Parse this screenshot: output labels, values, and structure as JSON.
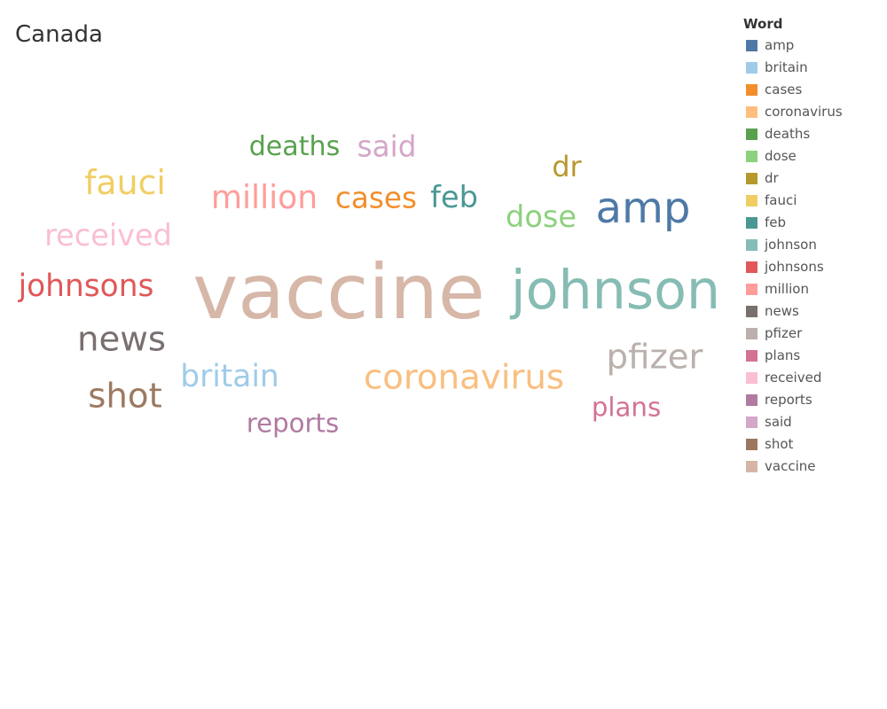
{
  "chart_data": {
    "type": "wordcloud",
    "title": "Canada",
    "legend_title": "Word",
    "legend_position": "right",
    "words": [
      {
        "text": "vaccine",
        "weight": 100,
        "color": "#d6b7a8"
      },
      {
        "text": "johnson",
        "weight": 70,
        "color": "#86bcb3"
      },
      {
        "text": "amp",
        "weight": 56,
        "color": "#4e79a7"
      },
      {
        "text": "coronavirus",
        "weight": 45,
        "color": "#f9bf80"
      },
      {
        "text": "news",
        "weight": 45,
        "color": "#7a6f6f"
      },
      {
        "text": "shot",
        "weight": 45,
        "color": "#9c7a60"
      },
      {
        "text": "pfizer",
        "weight": 45,
        "color": "#bab0ac"
      },
      {
        "text": "fauci",
        "weight": 44,
        "color": "#f1ce63"
      },
      {
        "text": "million",
        "weight": 42,
        "color": "#ff9d9a"
      },
      {
        "text": "johnsons",
        "weight": 40,
        "color": "#e15759"
      },
      {
        "text": "britain",
        "weight": 40,
        "color": "#a0cbe8"
      },
      {
        "text": "received",
        "weight": 39,
        "color": "#fabfd2"
      },
      {
        "text": "dose",
        "weight": 39,
        "color": "#8cd17d"
      },
      {
        "text": "feb",
        "weight": 39,
        "color": "#499894"
      },
      {
        "text": "cases",
        "weight": 38,
        "color": "#f28e2b"
      },
      {
        "text": "said",
        "weight": 38,
        "color": "#d4a6c8"
      },
      {
        "text": "dr",
        "weight": 37,
        "color": "#b6992d"
      },
      {
        "text": "deaths",
        "weight": 35,
        "color": "#59a14f"
      },
      {
        "text": "plans",
        "weight": 34,
        "color": "#d37295"
      },
      {
        "text": "reports",
        "weight": 34,
        "color": "#b07aa1"
      }
    ],
    "legend": [
      {
        "label": "amp",
        "color": "#4e79a7"
      },
      {
        "label": "britain",
        "color": "#a0cbe8"
      },
      {
        "label": "cases",
        "color": "#f28e2b"
      },
      {
        "label": "coronavirus",
        "color": "#ffbe7d"
      },
      {
        "label": "deaths",
        "color": "#59a14f"
      },
      {
        "label": "dose",
        "color": "#8cd17d"
      },
      {
        "label": "dr",
        "color": "#b6992d"
      },
      {
        "label": "fauci",
        "color": "#f1ce63"
      },
      {
        "label": "feb",
        "color": "#499894"
      },
      {
        "label": "johnson",
        "color": "#86bcb6"
      },
      {
        "label": "johnsons",
        "color": "#e15759"
      },
      {
        "label": "million",
        "color": "#ff9d9a"
      },
      {
        "label": "news",
        "color": "#79706e"
      },
      {
        "label": "pfizer",
        "color": "#bab0ac"
      },
      {
        "label": "plans",
        "color": "#d37295"
      },
      {
        "label": "received",
        "color": "#fabfd2"
      },
      {
        "label": "reports",
        "color": "#b07aa1"
      },
      {
        "label": "said",
        "color": "#d4a6c8"
      },
      {
        "label": "shot",
        "color": "#9d7660"
      },
      {
        "label": "vaccine",
        "color": "#d7b5a6"
      }
    ]
  }
}
